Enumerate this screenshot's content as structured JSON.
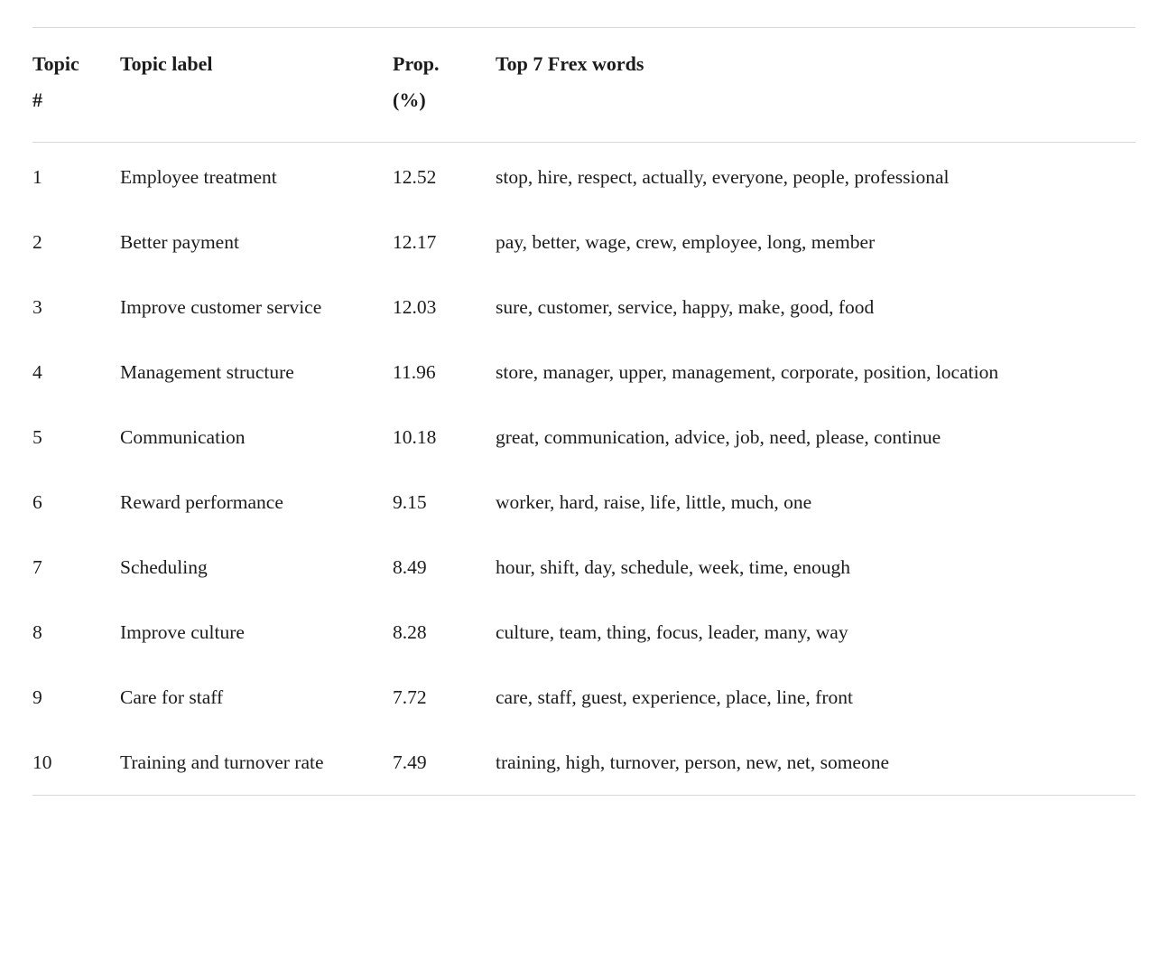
{
  "table": {
    "headers": {
      "topic_num": "Topic #",
      "topic_label": "Topic label",
      "prop": "Prop. (%)",
      "frex_words": "Top 7 Frex words"
    },
    "rows": [
      {
        "num": "1",
        "label": "Employee treatment",
        "prop": "12.52",
        "words": "stop, hire, respect, actually, everyone, people, professional"
      },
      {
        "num": "2",
        "label": "Better payment",
        "prop": "12.17",
        "words": "pay, better, wage, crew, employee, long, member"
      },
      {
        "num": "3",
        "label": "Improve customer service",
        "prop": "12.03",
        "words": "sure, customer, service, happy, make, good, food"
      },
      {
        "num": "4",
        "label": "Management structure",
        "prop": "11.96",
        "words": "store, manager, upper, management, corporate, position, location"
      },
      {
        "num": "5",
        "label": "Communication",
        "prop": "10.18",
        "words": "great, communication, advice, job, need, please, continue"
      },
      {
        "num": "6",
        "label": "Reward performance",
        "prop": "9.15",
        "words": "worker, hard, raise, life, little, much, one"
      },
      {
        "num": "7",
        "label": "Scheduling",
        "prop": "8.49",
        "words": "hour, shift, day, schedule, week, time, enough"
      },
      {
        "num": "8",
        "label": "Improve culture",
        "prop": "8.28",
        "words": "culture, team, thing, focus, leader, many, way"
      },
      {
        "num": "9",
        "label": "Care for staff",
        "prop": "7.72",
        "words": "care, staff, guest, experience, place, line, front"
      },
      {
        "num": "10",
        "label": "Training and turnover rate",
        "prop": "7.49",
        "words": "training, high, turnover, person, new, net, someone"
      }
    ],
    "colors": {
      "rule": "#d8d8d8",
      "text": "#1c1c1c",
      "background": "#ffffff"
    }
  }
}
